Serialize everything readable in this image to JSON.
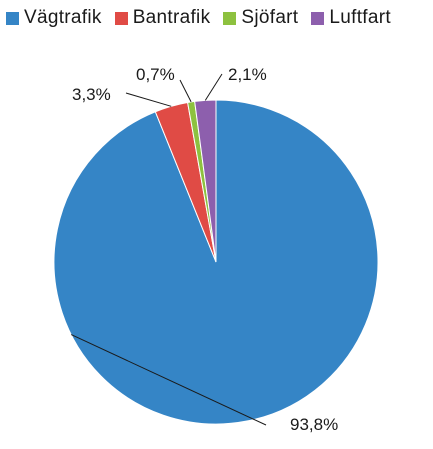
{
  "chart_data": {
    "type": "pie",
    "categories": [
      "Vägtrafik",
      "Bantrafik",
      "Sjöfart",
      "Luftfart"
    ],
    "values": [
      93.8,
      3.3,
      0.7,
      2.1
    ],
    "data_labels": [
      "93,8%",
      "3,3%",
      "0,7%",
      "2,1%"
    ],
    "colors": [
      "#3585c6",
      "#e04b45",
      "#8dc13f",
      "#8d5fad"
    ],
    "legend_position": "top",
    "start_angle": "12 o'clock",
    "direction": "clockwise",
    "title": ""
  }
}
